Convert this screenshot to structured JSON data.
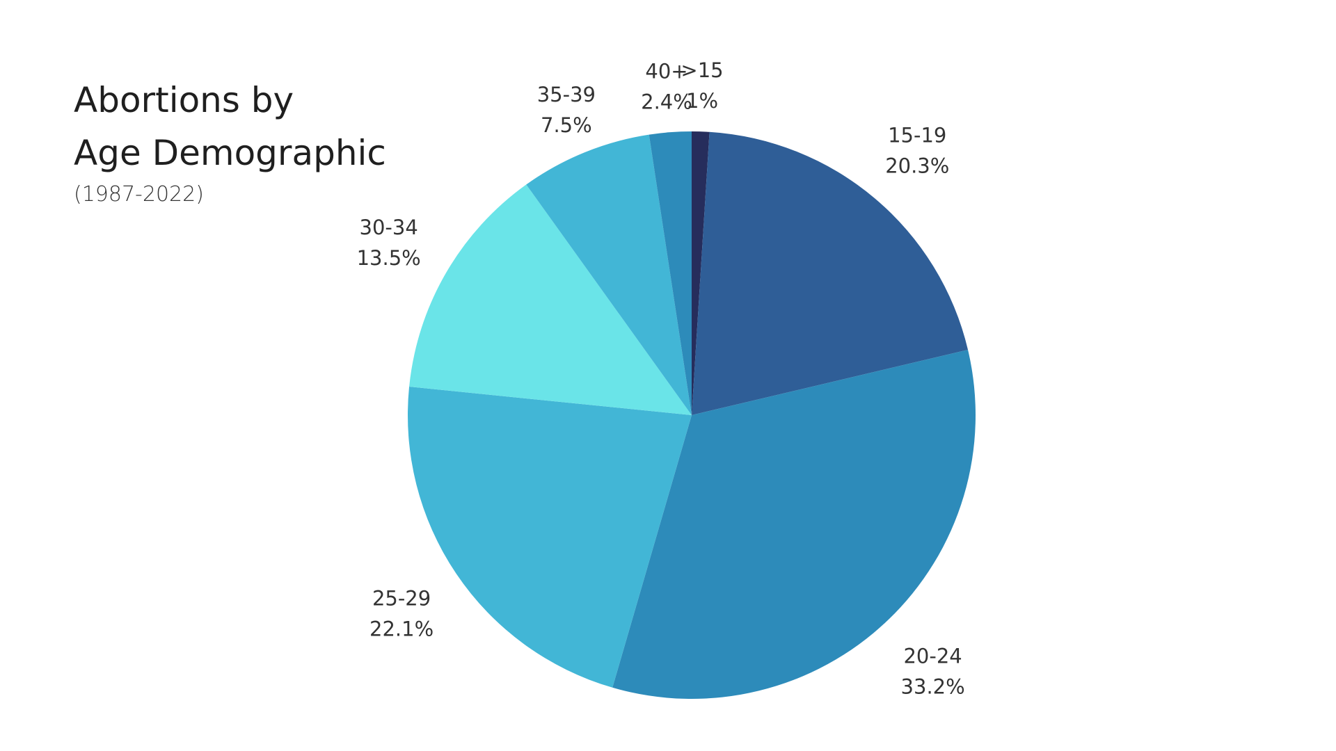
{
  "chart_data": {
    "type": "pie",
    "title": "Abortions by Age Demographic",
    "subtitle": "(1987-2022)",
    "slices": [
      {
        "label": ">15",
        "value": 1.0,
        "value_label": "1%",
        "color": "#262d5c"
      },
      {
        "label": "15-19",
        "value": 20.3,
        "value_label": "20.3%",
        "color": "#2f5e97"
      },
      {
        "label": "20-24",
        "value": 33.2,
        "value_label": "33.2%",
        "color": "#2d8bba"
      },
      {
        "label": "25-29",
        "value": 22.1,
        "value_label": "22.1%",
        "color": "#42b6d6"
      },
      {
        "label": "30-34",
        "value": 13.5,
        "value_label": "13.5%",
        "color": "#6ae4e8"
      },
      {
        "label": "35-39",
        "value": 7.5,
        "value_label": "7.5%",
        "color": "#42b6d6"
      },
      {
        "label": "40+",
        "value": 2.4,
        "value_label": "2.4%",
        "color": "#2d8bba"
      }
    ]
  }
}
